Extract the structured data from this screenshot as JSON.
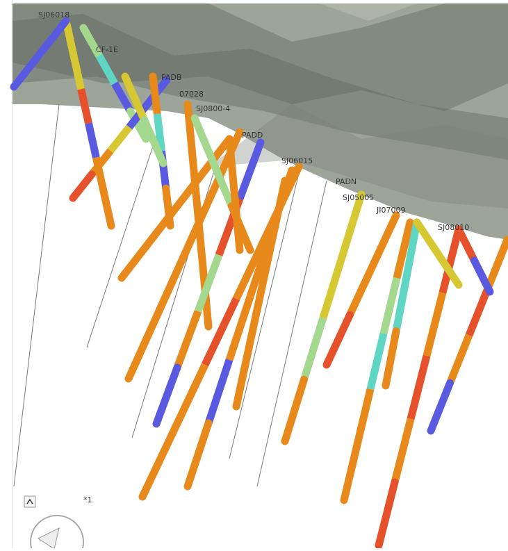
{
  "holes": [
    {
      "label": "SJ06018"
    },
    {
      "label": "CF-1E"
    },
    {
      "label": "PADB"
    },
    {
      "label": "07028"
    },
    {
      "label": "SJ0800-4"
    },
    {
      "label": "PADD"
    },
    {
      "label": "SJ06015"
    },
    {
      "label": "PADN"
    },
    {
      "label": "SJ05005"
    },
    {
      "label": "JI07009"
    },
    {
      "label": "SJ08010"
    }
  ],
  "view_marker": "*1"
}
